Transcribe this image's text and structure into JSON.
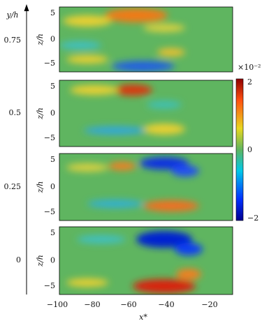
{
  "figure": {
    "y_axis": {
      "label": "y/h",
      "ticks": [
        "0.75",
        "0.5",
        "0.25",
        "0"
      ]
    },
    "panels": [
      {
        "ylabel": "z/h",
        "yticks": [
          "5",
          "0",
          "−5"
        ]
      },
      {
        "ylabel": "z/h",
        "yticks": [
          "5",
          "0",
          "−5"
        ]
      },
      {
        "ylabel": "z/h",
        "yticks": [
          "5",
          "0",
          "−5"
        ]
      },
      {
        "ylabel": "z/h",
        "yticks": [
          "5",
          "0",
          "−5"
        ]
      }
    ],
    "colorbar": {
      "exponent": "×10⁻²",
      "ticks": [
        "2",
        "0",
        "−2"
      ]
    },
    "x_axis": {
      "label": "x*",
      "ticks": [
        "−100",
        "−80",
        "−60",
        "−40",
        "−20"
      ]
    }
  }
}
